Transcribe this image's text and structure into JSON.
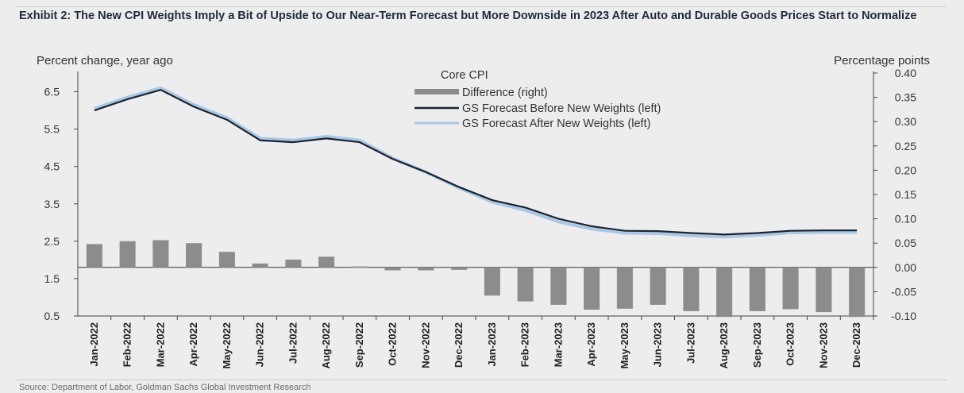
{
  "exhibit": {
    "title": "Exhibit 2: The New CPI Weights Imply a Bit of Upside to Our Near-Term Forecast but More Downside in 2023 After Auto and Durable Goods Prices Start to Normalize",
    "source": "Source: Department of Labor, Goldman Sachs Global Investment Research"
  },
  "chart_data": {
    "type": "bar+line",
    "legend_title": "Core CPI",
    "legend_placement": "top-center",
    "left_axis": {
      "label": "Percent change, year ago",
      "range": [
        0.5,
        7.0
      ],
      "ticks": [
        "0.5",
        "1.5",
        "2.5",
        "3.5",
        "4.5",
        "5.5",
        "6.5"
      ]
    },
    "right_axis": {
      "label": "Percentage points",
      "range": [
        -0.1,
        0.4
      ],
      "ticks": [
        "-0.10",
        "-0.05",
        "0.00",
        "0.05",
        "0.10",
        "0.15",
        "0.20",
        "0.25",
        "0.30",
        "0.35",
        "0.40"
      ]
    },
    "categories": [
      "Jan-2022",
      "Feb-2022",
      "Mar-2022",
      "Apr-2022",
      "May-2022",
      "Jun-2022",
      "Jul-2022",
      "Aug-2022",
      "Sep-2022",
      "Oct-2022",
      "Nov-2022",
      "Dec-2022",
      "Jan-2023",
      "Feb-2023",
      "Mar-2023",
      "Apr-2023",
      "May-2023",
      "Jun-2023",
      "Jul-2023",
      "Aug-2023",
      "Sep-2023",
      "Oct-2023",
      "Nov-2023",
      "Dec-2023"
    ],
    "series": [
      {
        "name": "Difference (right)",
        "kind": "bar",
        "axis": "right",
        "color": "#8c8c8c",
        "values": [
          0.048,
          0.054,
          0.056,
          0.05,
          0.032,
          0.008,
          0.016,
          0.022,
          0.002,
          -0.006,
          -0.006,
          -0.005,
          -0.058,
          -0.07,
          -0.077,
          -0.087,
          -0.085,
          -0.077,
          -0.09,
          -0.102,
          -0.09,
          -0.086,
          -0.092,
          -0.102
        ]
      },
      {
        "name": "GS Forecast Before New Weights (left)",
        "kind": "line",
        "axis": "left",
        "color": "#1a2433",
        "values": [
          6.0,
          6.3,
          6.55,
          6.1,
          5.75,
          5.2,
          5.15,
          5.25,
          5.15,
          4.7,
          4.35,
          3.95,
          3.6,
          3.4,
          3.1,
          2.9,
          2.78,
          2.77,
          2.72,
          2.68,
          2.72,
          2.78,
          2.79,
          2.79
        ]
      },
      {
        "name": "GS Forecast After New Weights (left)",
        "kind": "line",
        "axis": "left",
        "color": "#a9c8e6",
        "values": [
          6.05,
          6.35,
          6.6,
          6.15,
          5.8,
          5.25,
          5.2,
          5.3,
          5.2,
          4.72,
          4.35,
          3.93,
          3.55,
          3.33,
          3.02,
          2.83,
          2.72,
          2.71,
          2.65,
          2.62,
          2.66,
          2.73,
          2.74,
          2.74
        ]
      }
    ]
  }
}
